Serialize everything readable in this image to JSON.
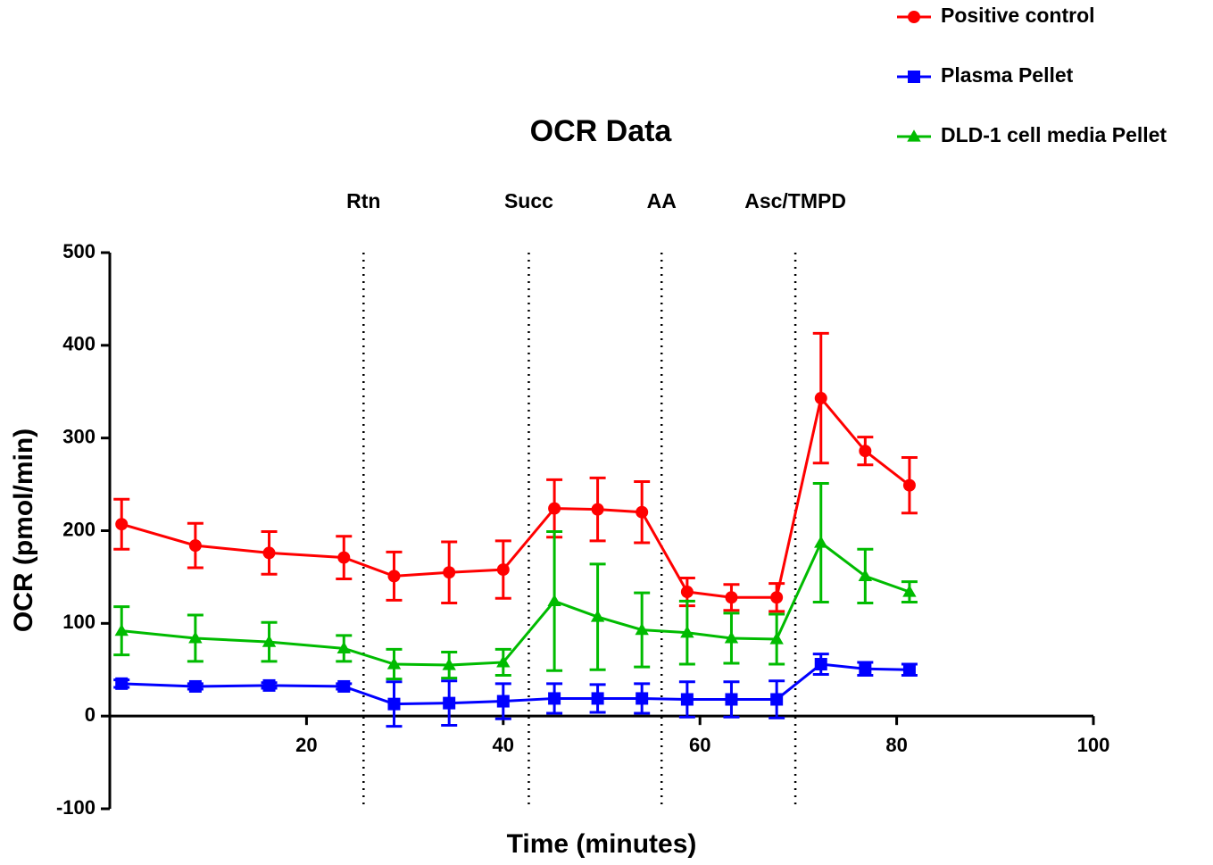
{
  "chart_data": {
    "type": "line",
    "title": "OCR Data",
    "x_label": "Time (minutes)",
    "y_label": "OCR (pmol/min)",
    "xlim": [
      0,
      100
    ],
    "xticks": [
      20,
      40,
      60,
      80,
      100
    ],
    "ylim": [
      -100,
      500
    ],
    "yticks": [
      -100,
      0,
      100,
      200,
      300,
      400,
      500
    ],
    "legend": "top-right",
    "annotations": [
      {
        "text": "Rtn",
        "x": 25.8
      },
      {
        "text": "Succ",
        "x": 42.6
      },
      {
        "text": "AA",
        "x": 56.1
      },
      {
        "text": "Asc/TMPD",
        "x": 69.7
      }
    ],
    "x": [
      1.2,
      8.7,
      16.2,
      23.8,
      28.9,
      34.5,
      40.0,
      45.2,
      49.6,
      54.1,
      58.7,
      63.2,
      67.8,
      72.3,
      76.8,
      81.3
    ],
    "series": [
      {
        "name": "Positive control",
        "color": "#ff0000",
        "marker": "circle",
        "values": [
          207,
          184,
          176,
          171,
          151,
          155,
          158,
          224,
          223,
          220,
          134,
          128,
          128,
          343,
          286,
          249
        ],
        "errors": [
          27,
          24,
          23,
          23,
          26,
          33,
          31,
          31,
          34,
          33,
          15,
          14,
          15,
          70,
          15,
          30
        ]
      },
      {
        "name": "Plasma Pellet",
        "color": "#0000ff",
        "marker": "square",
        "values": [
          35,
          32,
          33,
          32,
          13,
          14,
          16,
          19,
          19,
          19,
          18,
          18,
          18,
          56,
          51,
          50
        ],
        "errors": [
          4,
          3,
          3,
          3,
          24,
          24,
          19,
          16,
          15,
          16,
          19,
          19,
          20,
          11,
          7,
          6
        ]
      },
      {
        "name": "DLD-1 cell media Pellet",
        "color": "#00bb00",
        "marker": "triangle",
        "values": [
          92,
          84,
          80,
          73,
          56,
          55,
          58,
          124,
          107,
          93,
          90,
          84,
          83,
          187,
          151,
          134
        ],
        "errors": [
          26,
          25,
          21,
          14,
          16,
          14,
          14,
          75,
          57,
          40,
          34,
          27,
          27,
          64,
          29,
          11
        ]
      }
    ]
  }
}
